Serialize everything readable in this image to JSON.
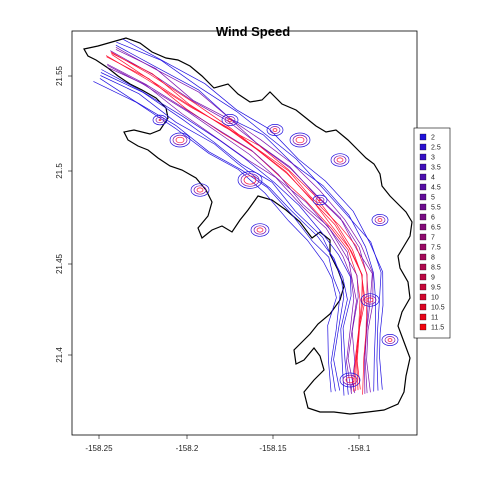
{
  "map": {
    "title": "Wind Speed",
    "x_ticks": [
      "-158.25",
      "-158.2",
      "-158.15",
      "-158.1"
    ],
    "y_ticks": [
      "21.55",
      "21.5",
      "21.45",
      "21.4"
    ],
    "legend": {
      "levels": [
        "2",
        "2.5",
        "3",
        "3.5",
        "4",
        "4.5",
        "5",
        "5.5",
        "6",
        "6.5",
        "7",
        "7.5",
        "8",
        "8.5",
        "9",
        "9.5",
        "10",
        "10.5",
        "11",
        "11.5"
      ],
      "colors": [
        "#1f11d9",
        "#2a10cf",
        "#3510c4",
        "#400fb9",
        "#4b0fae",
        "#560ea4",
        "#620d99",
        "#6d0d8e",
        "#780c84",
        "#830b79",
        "#8e0b6e",
        "#990a64",
        "#a40a59",
        "#af094e",
        "#bb0843",
        "#c60839",
        "#d1072e",
        "#dc0623",
        "#e70619",
        "#f2050e"
      ]
    },
    "contour_palette": {
      "low": "#2010e0",
      "mid": "#7a10b0",
      "high": "#ff1030"
    }
  }
}
